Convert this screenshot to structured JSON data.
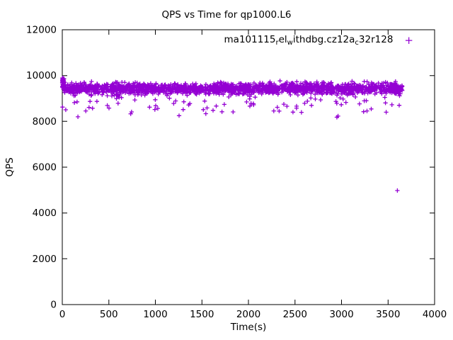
{
  "chart_data": {
    "type": "scatter",
    "title": "QPS vs Time for qp1000.L6",
    "xlabel": "Time(s)",
    "ylabel": "QPS",
    "xlim": [
      0,
      4000
    ],
    "ylim": [
      0,
      12000
    ],
    "xticks": [
      0,
      500,
      1000,
      1500,
      2000,
      2500,
      3000,
      3500,
      4000
    ],
    "yticks": [
      0,
      2000,
      4000,
      6000,
      8000,
      10000,
      12000
    ],
    "grid": false,
    "legend_position": "top-right-inside",
    "series": [
      {
        "name": "ma101115_rel_withdbg.cz12a_c32r128",
        "name_segments": [
          {
            "text": "ma101115"
          },
          {
            "text": "r",
            "sub": true
          },
          {
            "text": "el"
          },
          {
            "text": "w",
            "sub": true
          },
          {
            "text": "ithdbg.cz12a"
          },
          {
            "text": "c",
            "sub": true
          },
          {
            "text": "32r128"
          }
        ],
        "color": "#9400D3",
        "marker": "plus",
        "points_generated": {
          "seed": 42,
          "n": 1850,
          "x_min": 2,
          "x_max": 3655,
          "y_mean": 9430,
          "y_jitter": 200,
          "dip_prob": 0.05,
          "dip_min": 150,
          "dip_max": 900
        },
        "startup_points": {
          "n": 50,
          "x_max": 18,
          "y_min": 9500,
          "y_max": 9900
        },
        "outliers": [
          [
            3600,
            4980
          ],
          [
            168,
            8200
          ],
          [
            735,
            8330
          ],
          [
            1255,
            8250
          ],
          [
            1620,
            8480
          ],
          [
            2330,
            8450
          ],
          [
            2950,
            8180
          ],
          [
            3480,
            8400
          ]
        ]
      }
    ]
  }
}
